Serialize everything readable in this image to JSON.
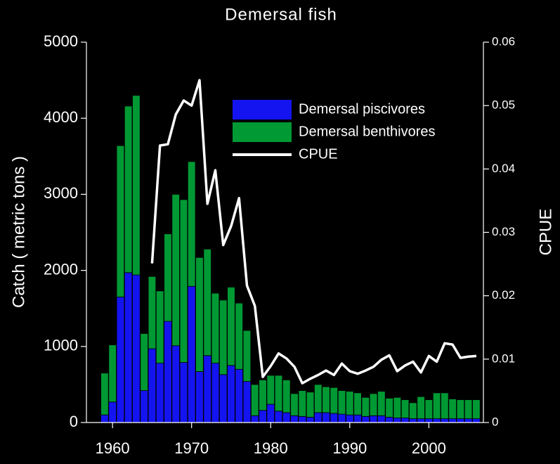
{
  "chart_data": {
    "type": "bar",
    "stacked": true,
    "title": "Demersal fish",
    "y_label": "Catch ( metric tons )",
    "y2_label": "CPUE",
    "x": [
      1959,
      1960,
      1961,
      1962,
      1963,
      1964,
      1965,
      1966,
      1967,
      1968,
      1969,
      1970,
      1971,
      1972,
      1973,
      1974,
      1975,
      1976,
      1977,
      1978,
      1979,
      1980,
      1981,
      1982,
      1983,
      1984,
      1985,
      1986,
      1987,
      1988,
      1989,
      1990,
      1991,
      1992,
      1993,
      1994,
      1995,
      1996,
      1997,
      1998,
      1999,
      2000,
      2001,
      2002,
      2003,
      2004,
      2005,
      2006
    ],
    "series": [
      {
        "name": "Demersal piscivores",
        "color": "#1414f0",
        "values": [
          100,
          270,
          1650,
          1970,
          1940,
          420,
          970,
          780,
          1330,
          1010,
          790,
          1790,
          670,
          880,
          780,
          630,
          750,
          700,
          540,
          90,
          160,
          240,
          150,
          130,
          90,
          80,
          70,
          130,
          130,
          120,
          110,
          100,
          100,
          80,
          90,
          90,
          70,
          60,
          60,
          50,
          50,
          50,
          50,
          50,
          50,
          50,
          50,
          50
        ]
      },
      {
        "name": "Demersal benthivores",
        "color": "#009933",
        "values": [
          550,
          750,
          1990,
          2190,
          2360,
          750,
          950,
          950,
          1150,
          1990,
          2140,
          1640,
          1500,
          1400,
          920,
          980,
          1030,
          870,
          670,
          410,
          400,
          380,
          470,
          430,
          290,
          340,
          330,
          370,
          340,
          340,
          310,
          310,
          290,
          250,
          290,
          320,
          250,
          270,
          240,
          210,
          290,
          250,
          340,
          340,
          260,
          250,
          250,
          250
        ]
      },
      {
        "name": "CPUE",
        "color": "#ffffff",
        "axis": "y2",
        "type": "line",
        "values": [
          null,
          null,
          null,
          null,
          null,
          null,
          0.0251,
          0.0437,
          0.0439,
          0.0486,
          0.0508,
          0.05,
          0.054,
          0.0345,
          0.0398,
          0.028,
          0.031,
          0.0354,
          0.0216,
          0.0184,
          0.0072,
          0.0089,
          0.0109,
          0.0101,
          0.0088,
          0.0062,
          0.0069,
          0.0075,
          0.0082,
          0.0075,
          0.0093,
          0.0081,
          0.0077,
          0.0082,
          0.0088,
          0.0099,
          0.0106,
          0.0081,
          0.009,
          0.0096,
          0.0079,
          0.0105,
          0.0096,
          0.0125,
          0.0123,
          0.0102,
          0.0104,
          0.0105
        ]
      }
    ],
    "xlim": [
      1956.7,
      2006.9
    ],
    "xticks": [
      1960,
      1970,
      1980,
      1990,
      2000
    ],
    "ylim": [
      0,
      5000
    ],
    "yticks": [
      0,
      1000,
      2000,
      3000,
      4000,
      5000
    ],
    "y2lim": [
      0,
      0.06
    ],
    "y2ticks": [
      0,
      0.01,
      0.02,
      0.03,
      0.04,
      0.05,
      0.06
    ],
    "legend": "upper right"
  }
}
